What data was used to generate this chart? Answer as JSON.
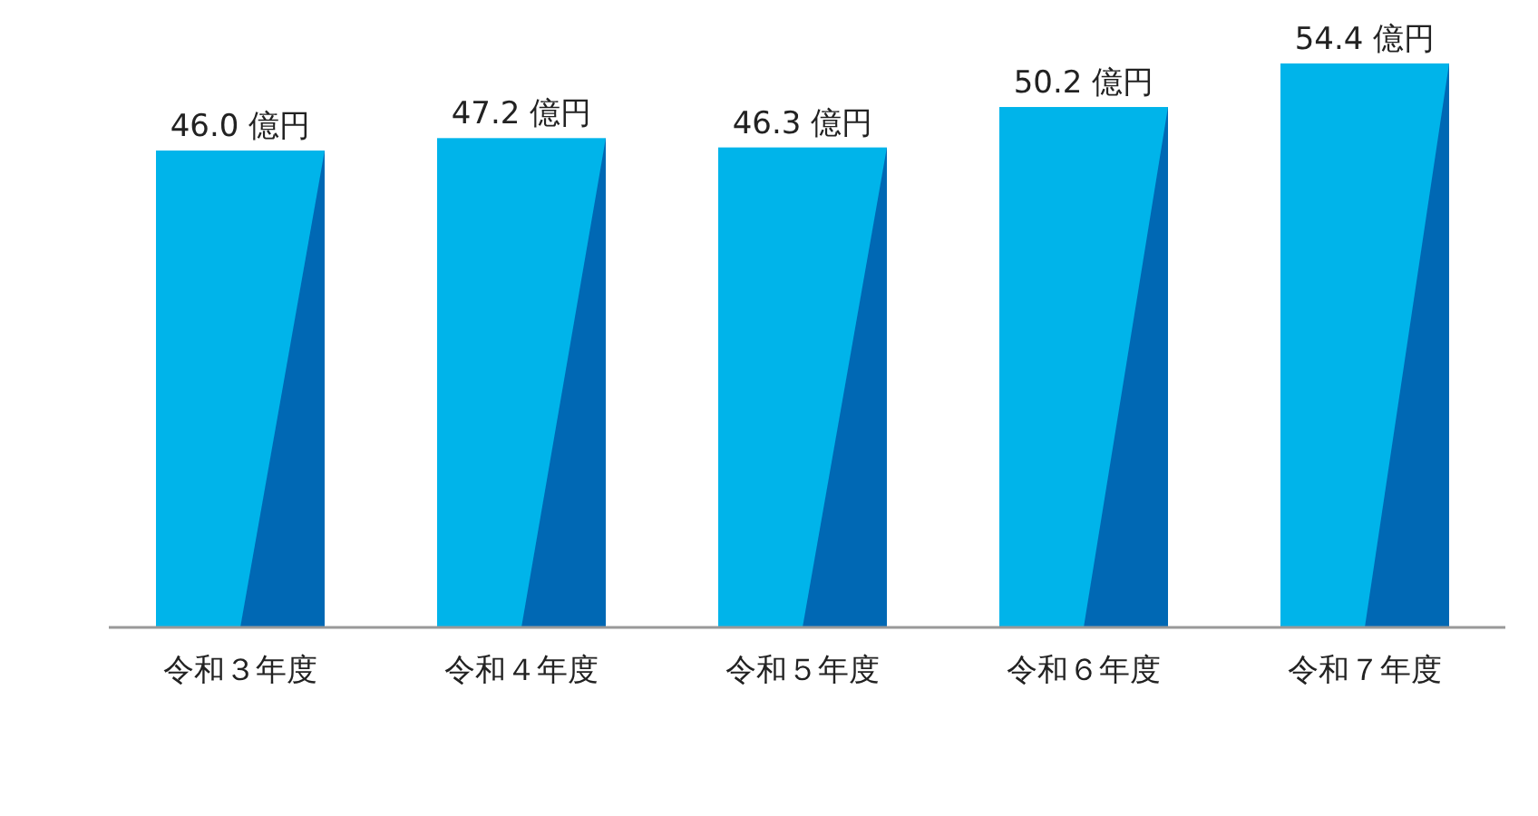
{
  "chart_data": {
    "type": "bar",
    "categories": [
      "令和３年度",
      "令和４年度",
      "令和５年度",
      "令和６年度",
      "令和７年度"
    ],
    "values": [
      46.0,
      47.2,
      46.3,
      50.2,
      54.4
    ],
    "value_labels": [
      "46.0 億円",
      "47.2 億円",
      "46.3 億円",
      "50.2 億円",
      "54.4 億円"
    ],
    "color": "#00b4ea",
    "tick_labels": "x"
  }
}
